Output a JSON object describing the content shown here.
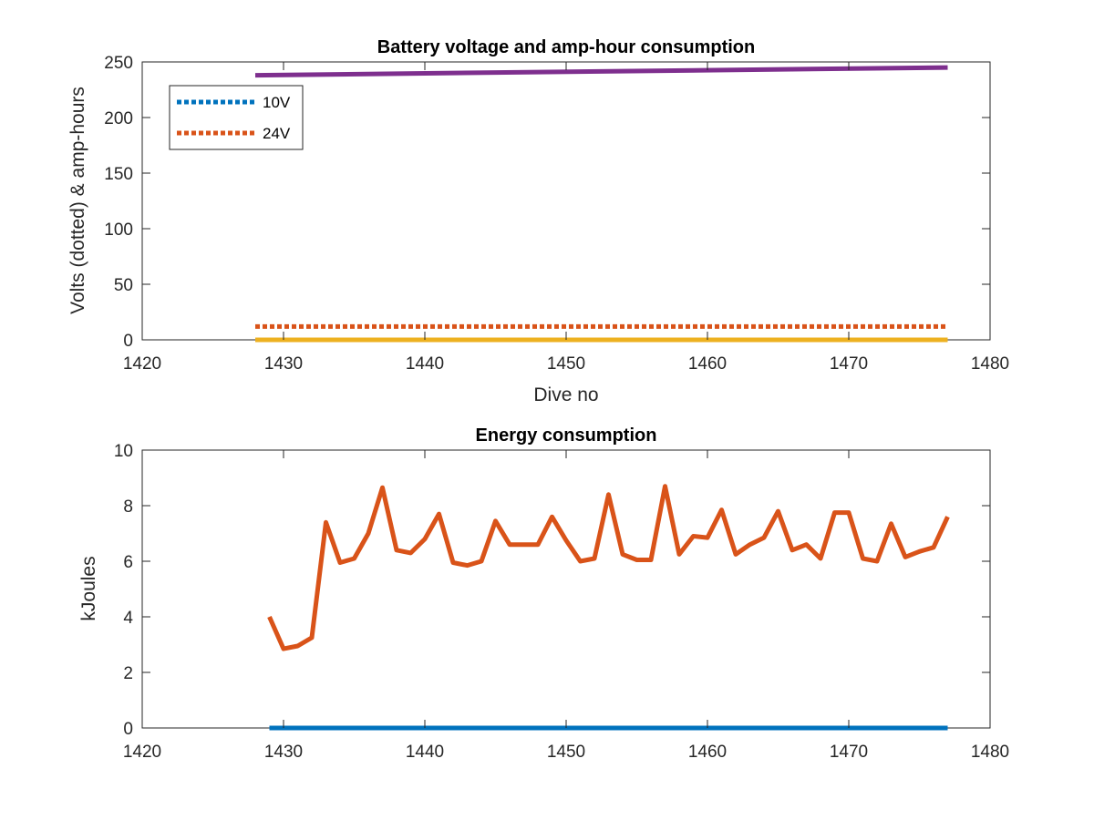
{
  "chart_data": [
    {
      "type": "line",
      "title": "Battery voltage and amp-hour consumption",
      "xlabel": "Dive no",
      "ylabel": "Volts (dotted) & amp-hours",
      "xlim": [
        1420,
        1480
      ],
      "ylim": [
        0,
        250
      ],
      "xticks": [
        1420,
        1430,
        1440,
        1450,
        1460,
        1470,
        1480
      ],
      "yticks": [
        0,
        50,
        100,
        150,
        200,
        250
      ],
      "grid": false,
      "legend_position": "top-left",
      "series": [
        {
          "name": "10V",
          "style": "dotted",
          "color": "#0072BD",
          "x": [
            1428,
            1477
          ],
          "y": [
            0,
            0
          ]
        },
        {
          "name": "24V",
          "style": "dotted",
          "color": "#D95319",
          "x": [
            1428,
            1477
          ],
          "y": [
            12,
            12
          ]
        },
        {
          "style": "solid",
          "color": "#EDB120",
          "x": [
            1428,
            1477
          ],
          "y": [
            0,
            0
          ]
        },
        {
          "style": "solid",
          "color": "#7E2F8E",
          "x": [
            1428,
            1477
          ],
          "y": [
            238,
            245
          ]
        }
      ]
    },
    {
      "type": "line",
      "title": "Energy consumption",
      "xlabel": "",
      "ylabel": "kJoules",
      "xlim": [
        1420,
        1480
      ],
      "ylim": [
        0,
        10
      ],
      "xticks": [
        1420,
        1430,
        1440,
        1450,
        1460,
        1470,
        1480
      ],
      "yticks": [
        0,
        2,
        4,
        6,
        8,
        10
      ],
      "grid": false,
      "series": [
        {
          "style": "solid",
          "color": "#0072BD",
          "x": [
            1429,
            1477
          ],
          "y": [
            0,
            0
          ]
        },
        {
          "style": "solid",
          "color": "#D95319",
          "x": [
            1429,
            1430,
            1431,
            1432,
            1433,
            1434,
            1435,
            1436,
            1437,
            1438,
            1439,
            1440,
            1441,
            1442,
            1443,
            1444,
            1445,
            1446,
            1447,
            1448,
            1449,
            1450,
            1451,
            1452,
            1453,
            1454,
            1455,
            1456,
            1457,
            1458,
            1459,
            1460,
            1461,
            1462,
            1463,
            1464,
            1465,
            1466,
            1467,
            1468,
            1469,
            1470,
            1471,
            1472,
            1473,
            1474,
            1475,
            1476,
            1477
          ],
          "y": [
            4.0,
            2.85,
            2.95,
            3.25,
            7.4,
            5.95,
            6.1,
            7.0,
            8.65,
            6.4,
            6.3,
            6.8,
            7.7,
            5.95,
            5.85,
            6.0,
            7.45,
            6.6,
            6.6,
            6.6,
            7.6,
            6.75,
            6.0,
            6.1,
            8.4,
            6.25,
            6.05,
            6.05,
            8.7,
            6.25,
            6.9,
            6.85,
            7.85,
            6.25,
            6.6,
            6.85,
            7.8,
            6.4,
            6.6,
            6.1,
            7.75,
            7.75,
            6.1,
            6.0,
            7.35,
            6.15,
            6.35,
            6.5,
            7.6
          ]
        }
      ]
    }
  ]
}
